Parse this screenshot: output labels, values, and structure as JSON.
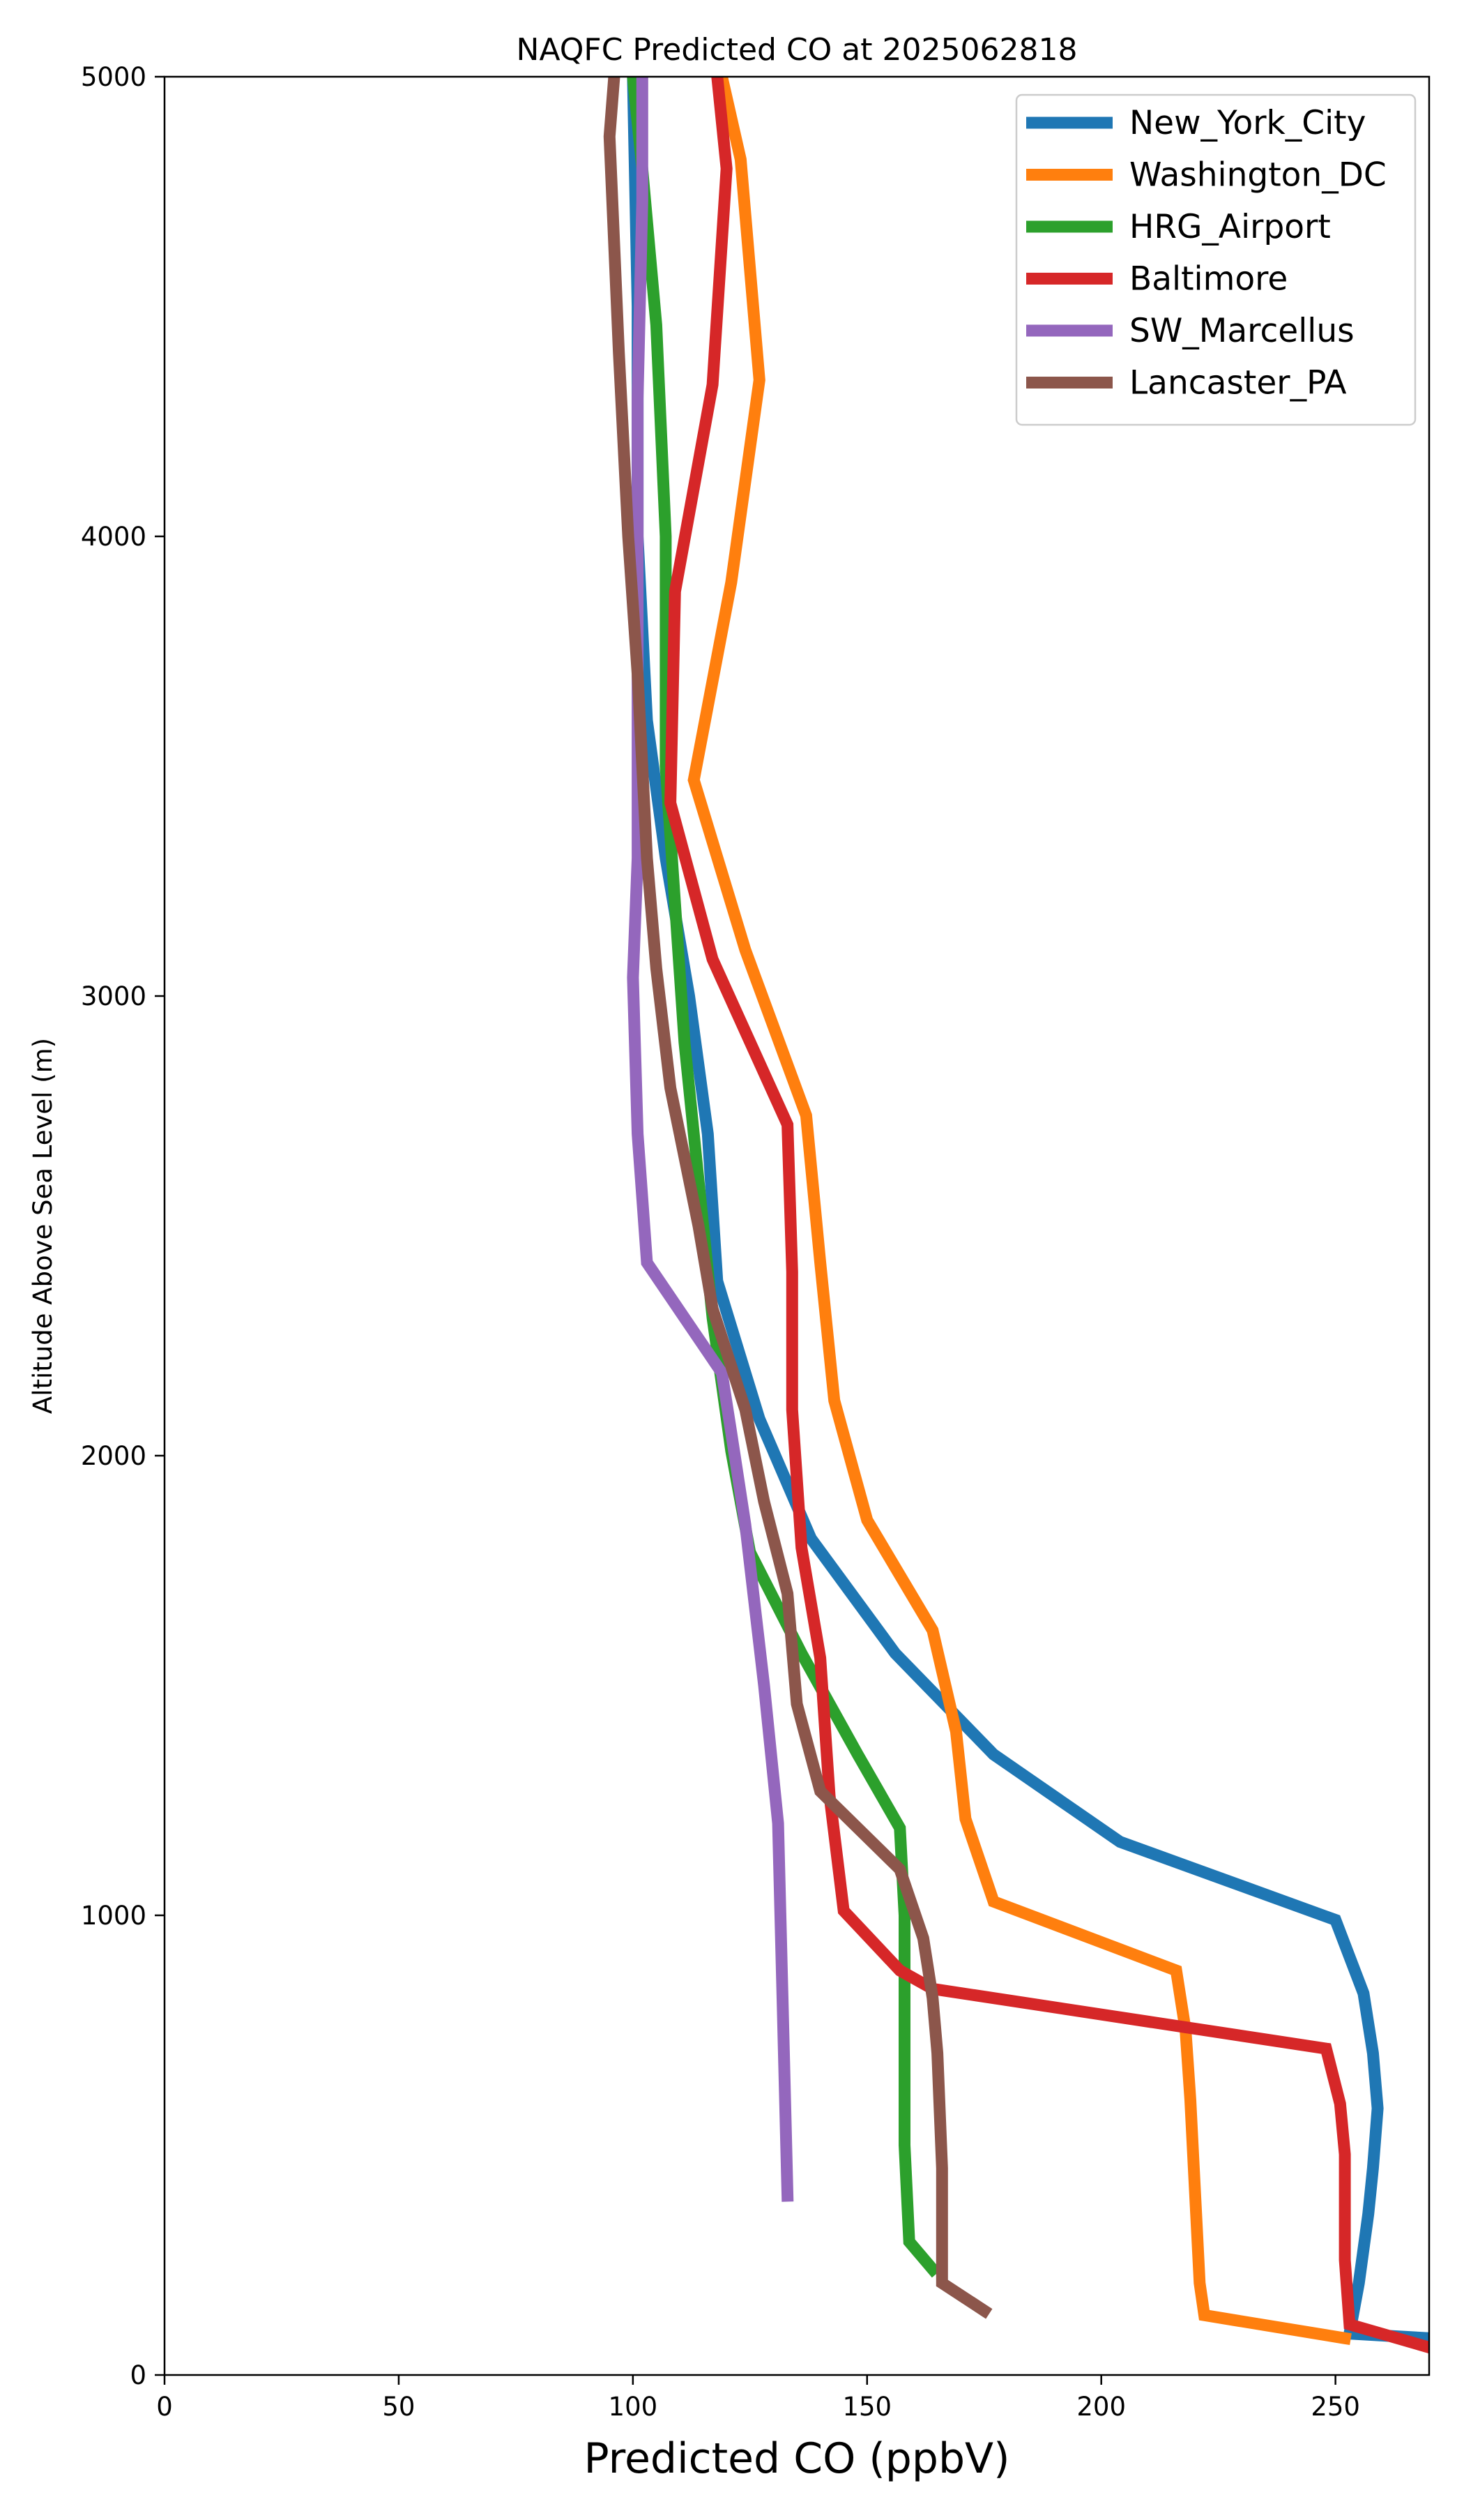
{
  "chart_data": {
    "type": "line",
    "title": "NAQFC Predicted CO at 2025062818",
    "xlabel": "Predicted CO (ppbV)",
    "ylabel": "Altitude Above Sea Level (m)",
    "xlim": [
      0,
      270
    ],
    "ylim": [
      0,
      5000
    ],
    "xticks": [
      0,
      50,
      100,
      150,
      200,
      250
    ],
    "yticks": [
      0,
      1000,
      2000,
      3000,
      4000,
      5000
    ],
    "grid": false,
    "legend_position": "top-right",
    "series": [
      {
        "name": "New_York_City",
        "color": "#1f77b4",
        "points": [
          [
            270,
            80
          ],
          [
            253,
            90
          ],
          [
            255,
            200
          ],
          [
            257,
            350
          ],
          [
            258,
            450
          ],
          [
            259,
            580
          ],
          [
            258,
            700
          ],
          [
            256,
            830
          ],
          [
            250,
            990
          ],
          [
            204,
            1160
          ],
          [
            177,
            1350
          ],
          [
            156,
            1570
          ],
          [
            138,
            1820
          ],
          [
            127,
            2080
          ],
          [
            118,
            2380
          ],
          [
            116,
            2700
          ],
          [
            112,
            3000
          ],
          [
            107,
            3300
          ],
          [
            103,
            3600
          ],
          [
            101,
            4000
          ],
          [
            101,
            4500
          ],
          [
            100,
            5000
          ]
        ]
      },
      {
        "name": "Washington_DC",
        "color": "#ff7f0e",
        "points": [
          [
            252,
            80
          ],
          [
            222,
            130
          ],
          [
            221,
            200
          ],
          [
            220,
            400
          ],
          [
            219,
            600
          ],
          [
            218,
            750
          ],
          [
            216,
            880
          ],
          [
            177,
            1030
          ],
          [
            171,
            1210
          ],
          [
            169,
            1400
          ],
          [
            164,
            1620
          ],
          [
            150,
            1860
          ],
          [
            143,
            2120
          ],
          [
            140,
            2420
          ],
          [
            137,
            2740
          ],
          [
            124,
            3100
          ],
          [
            113,
            3470
          ],
          [
            121,
            3900
          ],
          [
            127,
            4340
          ],
          [
            123,
            4820
          ],
          [
            119,
            5000
          ]
        ]
      },
      {
        "name": "HRG_Airport",
        "color": "#2ca02c",
        "points": [
          [
            164,
            230
          ],
          [
            159,
            290
          ],
          [
            158,
            500
          ],
          [
            158,
            800
          ],
          [
            158,
            1000
          ],
          [
            157,
            1190
          ],
          [
            148,
            1350
          ],
          [
            136,
            1570
          ],
          [
            125,
            1790
          ],
          [
            121,
            2010
          ],
          [
            117,
            2300
          ],
          [
            114,
            2600
          ],
          [
            111,
            2900
          ],
          [
            109,
            3200
          ],
          [
            107,
            3500
          ],
          [
            107,
            4000
          ],
          [
            105,
            4460
          ],
          [
            102,
            4800
          ],
          [
            100,
            5000
          ]
        ]
      },
      {
        "name": "Baltimore",
        "color": "#d62728",
        "points": [
          [
            270,
            60
          ],
          [
            253,
            110
          ],
          [
            252,
            250
          ],
          [
            252,
            480
          ],
          [
            251,
            590
          ],
          [
            248,
            710
          ],
          [
            164,
            840
          ],
          [
            157,
            880
          ],
          [
            145,
            1010
          ],
          [
            142,
            1260
          ],
          [
            140,
            1560
          ],
          [
            136,
            1800
          ],
          [
            134,
            2100
          ],
          [
            134,
            2400
          ],
          [
            133,
            2720
          ],
          [
            117,
            3080
          ],
          [
            108,
            3420
          ],
          [
            109,
            3880
          ],
          [
            117,
            4330
          ],
          [
            120,
            4800
          ],
          [
            118,
            5000
          ]
        ]
      },
      {
        "name": "SW_Marcellus",
        "color": "#9467bd",
        "points": [
          [
            133,
            390
          ],
          [
            132,
            800
          ],
          [
            131,
            1200
          ],
          [
            128,
            1500
          ],
          [
            124,
            1850
          ],
          [
            121,
            2050
          ],
          [
            119,
            2180
          ],
          [
            103,
            2420
          ],
          [
            101,
            2700
          ],
          [
            100,
            3040
          ],
          [
            101,
            3300
          ],
          [
            101,
            3700
          ],
          [
            101,
            4000
          ],
          [
            101,
            4300
          ],
          [
            102,
            4730
          ],
          [
            102,
            5000
          ]
        ]
      },
      {
        "name": "Lancaster_PA",
        "color": "#8c564b",
        "points": [
          [
            175,
            140
          ],
          [
            166,
            200
          ],
          [
            166,
            450
          ],
          [
            165,
            700
          ],
          [
            164,
            820
          ],
          [
            162,
            950
          ],
          [
            157,
            1100
          ],
          [
            140,
            1270
          ],
          [
            135,
            1460
          ],
          [
            133,
            1700
          ],
          [
            128,
            1900
          ],
          [
            124,
            2100
          ],
          [
            117,
            2320
          ],
          [
            114,
            2500
          ],
          [
            108,
            2800
          ],
          [
            105,
            3060
          ],
          [
            103,
            3300
          ],
          [
            101,
            3700
          ],
          [
            99,
            4000
          ],
          [
            97,
            4400
          ],
          [
            95,
            4870
          ],
          [
            96,
            5000
          ]
        ]
      }
    ]
  }
}
